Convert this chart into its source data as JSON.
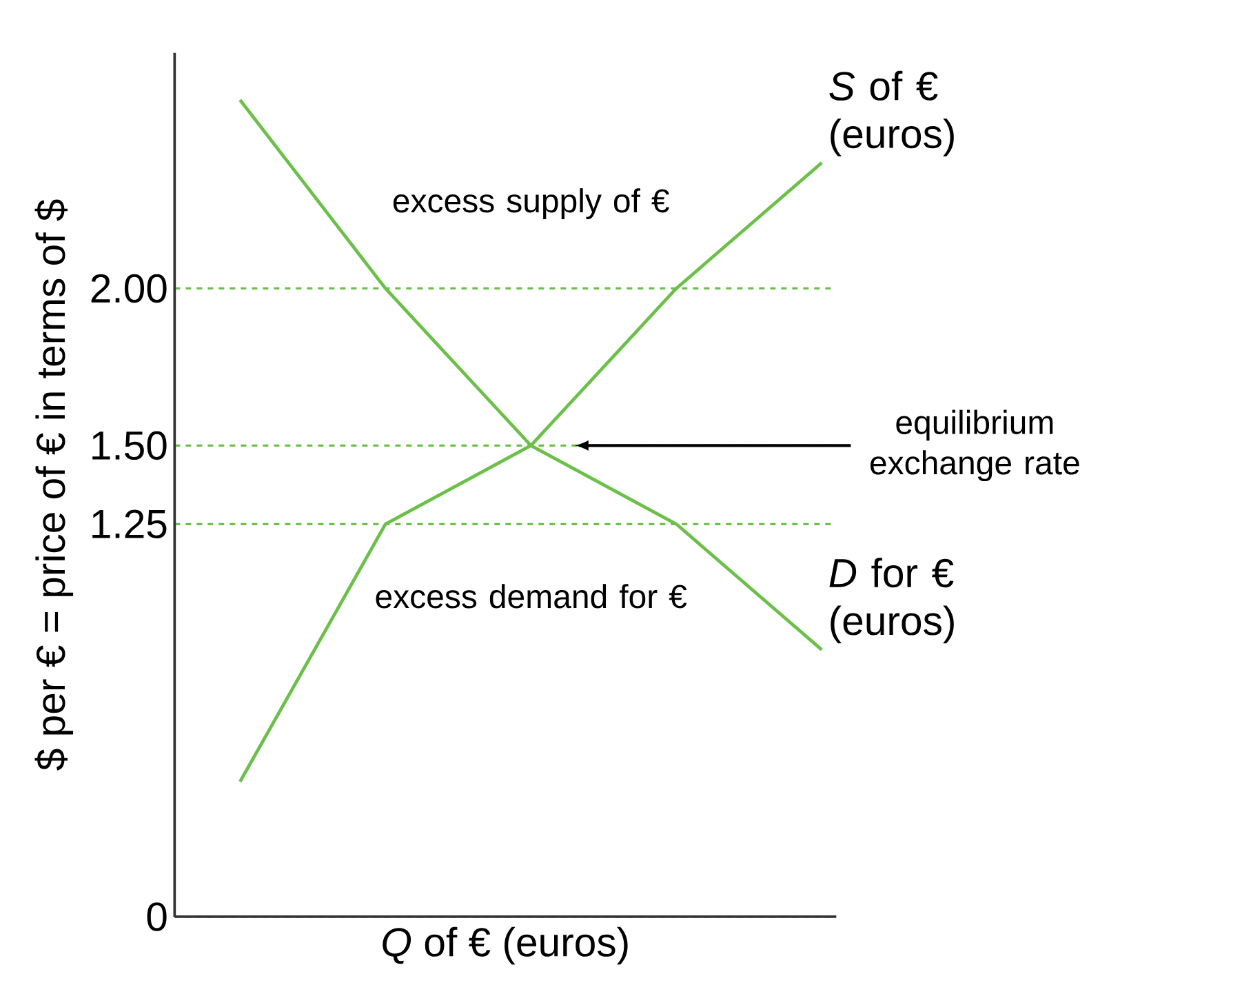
{
  "chart_data": {
    "type": "line",
    "xlabel": "*Q* of € (euros)",
    "ylabel": "$ per € = price of € in terms of $",
    "categories": [
      null,
      null,
      null,
      null,
      null
    ],
    "series": [
      {
        "name": "*S* of € (euros)",
        "color": "#6cc04a",
        "values": [
          0.43,
          1.25,
          1.5,
          2.0,
          2.4
        ]
      },
      {
        "name": "*D* for € (euros)",
        "color": "#6cc04a",
        "values": [
          2.6,
          2.0,
          1.5,
          1.25,
          0.85
        ]
      }
    ],
    "ylim": [
      0,
      2.75
    ],
    "yticks": [
      0,
      1.25,
      {
        "value": 1.5,
        "label": "1.50"
      },
      {
        "value": 2,
        "label": "2.00"
      }
    ],
    "tick_labels": "y",
    "annotations": [
      "excess supply of €",
      "excess demand for €",
      "equilibrium exchange rate"
    ],
    "marker": "none",
    "line_style": "solid",
    "grid": "y"
  }
}
